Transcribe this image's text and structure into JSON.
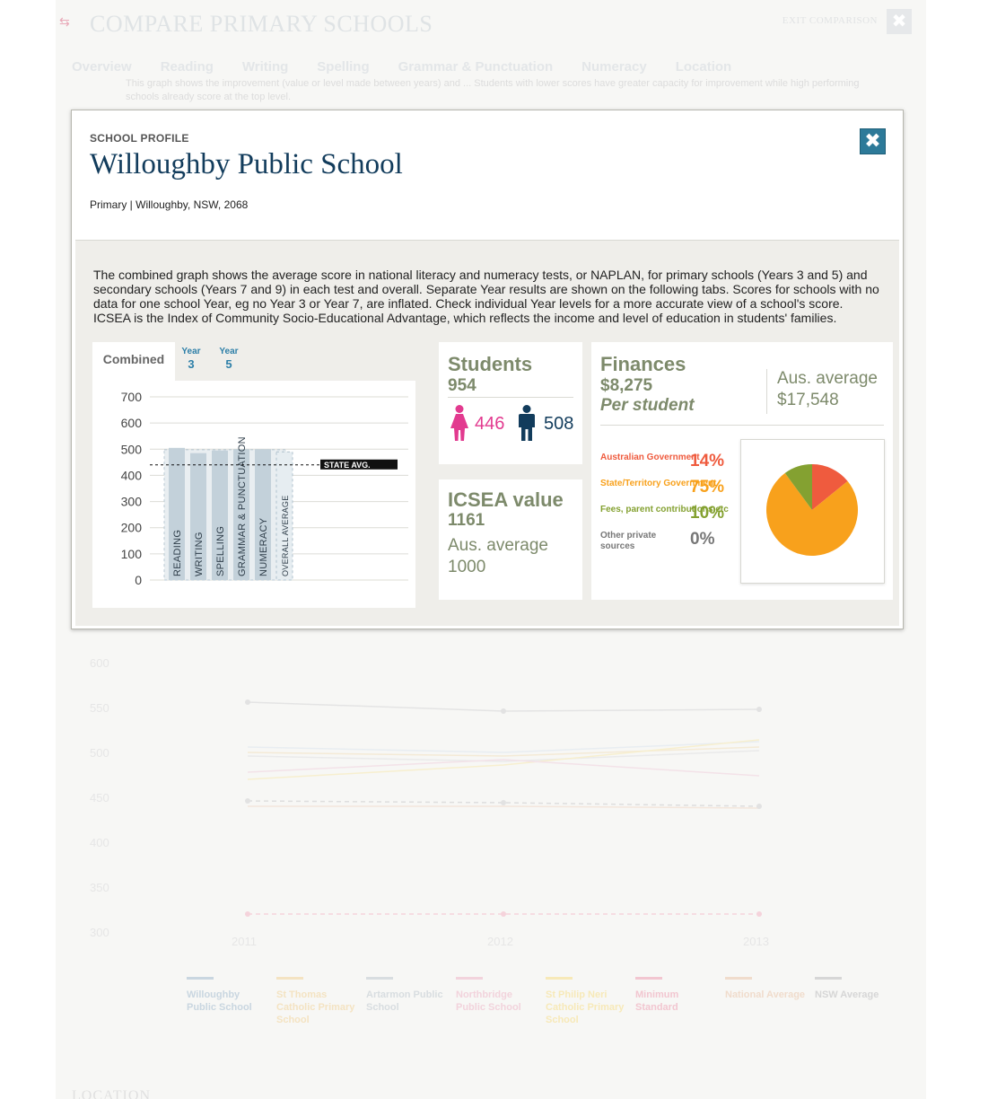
{
  "background": {
    "title": "COMPARE PRIMARY SCHOOLS",
    "exit_label": "EXIT COMPARISON",
    "nav": [
      "Overview",
      "Reading",
      "Writing",
      "Spelling",
      "Grammar & Punctuation",
      "Numeracy",
      "Location"
    ],
    "note": "This graph shows the improvement (value or level made between years) and ... Students with lower scores have greater capacity for improvement while high performing schools already score at the top level.",
    "y_ticks": [
      "600",
      "550",
      "500",
      "450",
      "400",
      "350",
      "300"
    ],
    "x_ticks": [
      "2011",
      "2012",
      "2013"
    ],
    "legend": [
      {
        "label": "Willoughby Public School",
        "color": "#c9d6e0"
      },
      {
        "label": "St Thomas Catholic Primary School",
        "color": "#f4e3c2"
      },
      {
        "label": "Artarmon Public School",
        "color": "#d8dde0"
      },
      {
        "label": "Northbridge Public School",
        "color": "#f2d3dc"
      },
      {
        "label": "St Philip Neri Catholic Primary School",
        "color": "#f7e9b8"
      },
      {
        "label": "Minimum Standard",
        "color": "#f2c6d0"
      },
      {
        "label": "National Average",
        "color": "#f0dccc"
      },
      {
        "label": "NSW Average",
        "color": "#d6d6d6"
      }
    ],
    "section": "LOCATION"
  },
  "modal": {
    "kicker": "SCHOOL PROFILE",
    "school_name": "Willoughby Public School",
    "subtitle": "Primary | Willoughby, NSW, 2068",
    "close_icon": "close-icon",
    "description": "The combined graph shows the average score in national literacy and numeracy tests, or NAPLAN, for primary schools (Years 3 and 5) and secondary schools (Years 7 and 9) in each test and overall. Separate Year results are shown on the following tabs. Scores for schools with no data for one school Year, eg no Year 3 or Year 7, are inflated. Check individual Year levels for a more accurate view of a school's score. ICSEA is the Index of Community Socio-Educational Advantage, which reflects the income and level of education in students' families."
  },
  "tabs": {
    "combined": "Combined",
    "year3_label": "Year",
    "year3_num": "3",
    "year5_label": "Year",
    "year5_num": "5"
  },
  "chart_data": {
    "type": "bar",
    "categories": [
      "READING",
      "WRITING",
      "SPELLING",
      "GRAMMAR & PUNCTUATION",
      "NUMERACY",
      "OVERALL AVERAGE"
    ],
    "values": [
      505,
      485,
      495,
      500,
      500,
      490
    ],
    "ylim": [
      0,
      700
    ],
    "yticks": [
      0,
      100,
      200,
      300,
      400,
      500,
      600,
      700
    ],
    "reference_line": {
      "label": "STATE AVG.",
      "value": 440
    },
    "grid": true,
    "colors": {
      "bar": "#c3d1da",
      "overall": "#e6edf1",
      "text": "#2f3e4a"
    }
  },
  "students": {
    "title": "Students",
    "total": "954",
    "female": "446",
    "male": "508",
    "female_color": "#e23a8f",
    "male_color": "#123c5c"
  },
  "icsea": {
    "title": "ICSEA value",
    "value": "1161",
    "avg_label": "Aus. average",
    "avg_value": "1000"
  },
  "finances": {
    "title": "Finances",
    "amount": "$8,275",
    "per": "Per student",
    "avg_label": "Aus. average",
    "avg_value": "$17,548",
    "sources": [
      {
        "label": "Australian Government",
        "pct": "14%",
        "value": 14,
        "color": "#ef5b3e"
      },
      {
        "label": "State/Territory Government",
        "pct": "75%",
        "value": 75,
        "color": "#f8a11c"
      },
      {
        "label": "Fees, parent contributions etc",
        "pct": "10%",
        "value": 10,
        "color": "#84a131"
      },
      {
        "label": "Other private sources",
        "pct": "0%",
        "value": 0,
        "color": "#777777"
      }
    ]
  }
}
